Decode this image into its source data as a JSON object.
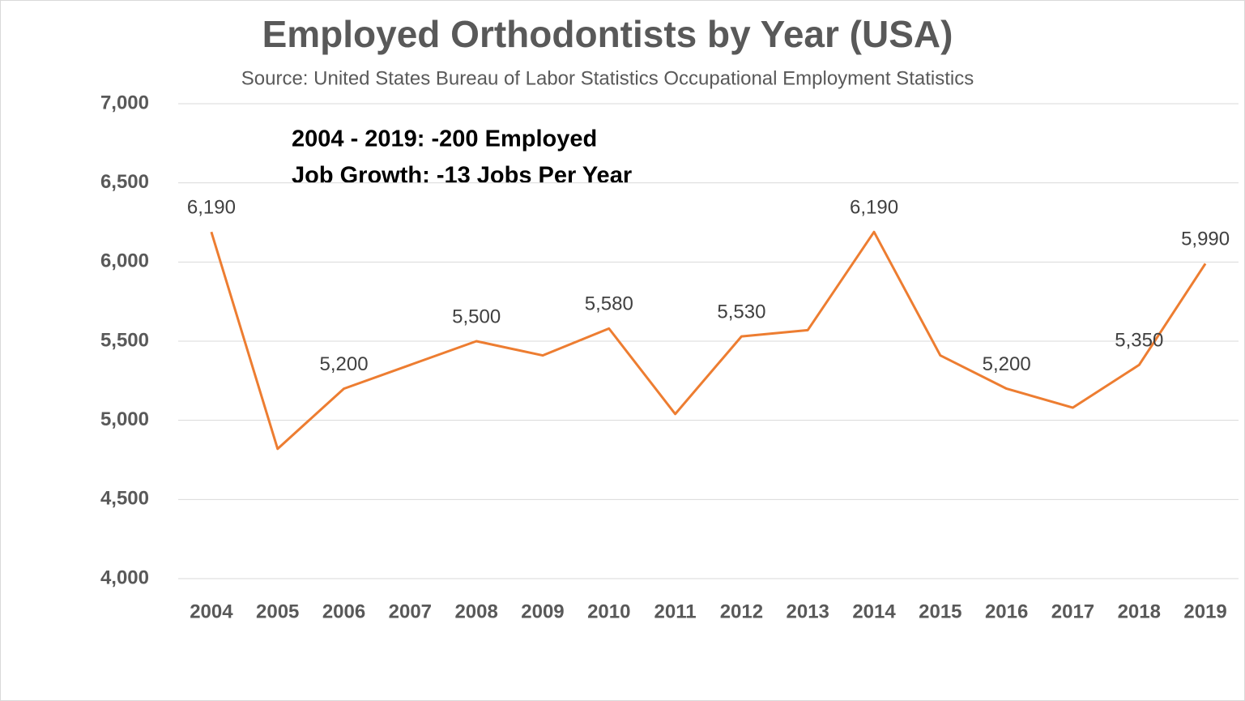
{
  "chart_data": {
    "type": "line",
    "title": "Employed Orthodontists by Year (USA)",
    "subtitle": "Source: United States Bureau of Labor Statistics Occupational Employment Statistics",
    "annotations": [
      "2004 - 2019:  -200 Employed",
      "Job Growth: -13 Jobs Per Year"
    ],
    "categories": [
      "2004",
      "2005",
      "2006",
      "2007",
      "2008",
      "2009",
      "2010",
      "2011",
      "2012",
      "2013",
      "2014",
      "2015",
      "2016",
      "2017",
      "2018",
      "2019"
    ],
    "values": [
      6190,
      4820,
      5200,
      5350,
      5500,
      5410,
      5580,
      5040,
      5530,
      5570,
      6190,
      5410,
      5200,
      5080,
      5350,
      5990
    ],
    "value_labels": [
      "6,190",
      null,
      "5,200",
      null,
      "5,500",
      null,
      "5,580",
      null,
      "5,530",
      null,
      "6,190",
      null,
      "5,200",
      null,
      "5,350",
      "5,990"
    ],
    "color": "#ed7d31",
    "ylim": [
      4000,
      7000
    ],
    "yticks": [
      {
        "value": 4000,
        "label": "4,000"
      },
      {
        "value": 4500,
        "label": "4,500"
      },
      {
        "value": 5000,
        "label": "5,000"
      },
      {
        "value": 5500,
        "label": "5,500"
      },
      {
        "value": 6000,
        "label": "6,000"
      },
      {
        "value": 6500,
        "label": "6,500"
      },
      {
        "value": 7000,
        "label": "7,000"
      }
    ],
    "grid": true
  }
}
